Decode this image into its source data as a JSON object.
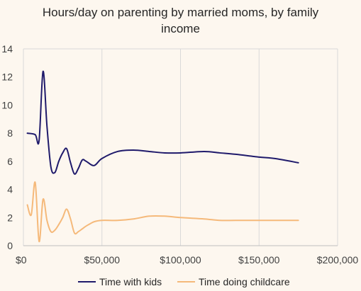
{
  "chart_data": {
    "type": "line",
    "title_lines": [
      "Hours/day on parenting by married moms, by family",
      "income"
    ],
    "xlabel": "",
    "ylabel": "",
    "xlim": [
      0,
      200000
    ],
    "ylim": [
      0,
      14
    ],
    "x_ticks": [
      0,
      50000,
      100000,
      150000,
      200000
    ],
    "x_tick_labels": [
      "$0",
      "$50,000",
      "$100,000",
      "$150,000",
      "$200,000"
    ],
    "y_ticks": [
      0,
      2,
      4,
      6,
      8,
      10,
      12,
      14
    ],
    "y_tick_labels": [
      "0",
      "2",
      "4",
      "6",
      "8",
      "10",
      "12",
      "14"
    ],
    "grid": "vertical",
    "legend_position": "bottom",
    "series": [
      {
        "name": "Time with kids",
        "color": "#1f1a6b",
        "x": [
          2500,
          7500,
          10000,
          12500,
          15000,
          17500,
          20000,
          22500,
          25000,
          27500,
          30000,
          32500,
          35000,
          37500,
          40000,
          45000,
          50000,
          60000,
          70000,
          80000,
          90000,
          100000,
          115000,
          125000,
          135000,
          150000,
          160000,
          175000
        ],
        "y": [
          8.0,
          7.9,
          7.5,
          12.4,
          8.5,
          5.6,
          5.2,
          6.0,
          6.6,
          6.9,
          5.9,
          5.1,
          5.5,
          6.1,
          6.0,
          5.7,
          6.2,
          6.7,
          6.8,
          6.7,
          6.6,
          6.6,
          6.7,
          6.6,
          6.5,
          6.3,
          6.2,
          5.9
        ]
      },
      {
        "name": "Time doing childcare",
        "color": "#f5b97a",
        "x": [
          2500,
          5000,
          7500,
          10000,
          12500,
          15000,
          17500,
          20000,
          22500,
          25000,
          27500,
          30000,
          32500,
          35000,
          37500,
          40000,
          45000,
          50000,
          60000,
          70000,
          80000,
          90000,
          100000,
          115000,
          125000,
          135000,
          150000,
          160000,
          175000
        ],
        "y": [
          2.9,
          2.2,
          4.5,
          0.3,
          3.3,
          1.8,
          1.0,
          1.1,
          1.5,
          2.0,
          2.6,
          1.9,
          0.9,
          1.0,
          1.2,
          1.4,
          1.7,
          1.8,
          1.8,
          1.9,
          2.1,
          2.1,
          2.0,
          1.9,
          1.8,
          1.8,
          1.8,
          1.8,
          1.8
        ]
      }
    ]
  }
}
